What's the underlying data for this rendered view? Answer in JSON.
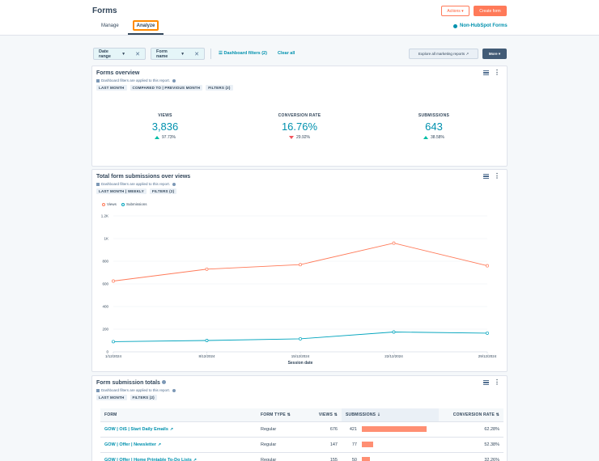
{
  "header": {
    "title": "Forms",
    "actions_label": "Actions ▾",
    "create_label": "Create form",
    "tabs": [
      {
        "label": "Manage"
      },
      {
        "label": "Analyze"
      }
    ],
    "non_hubspot_label": "Non-HubSpot Forms"
  },
  "filters": {
    "date_range": "Date range",
    "form_name": "Form name",
    "dashboard_filters": "Dashboard filters (2)",
    "clear_all": "Clear all",
    "explore": "Explore all marketing reports",
    "more": "More ▾"
  },
  "overview": {
    "title": "Forms overview",
    "applied_note": "Dashboard filters are applied to this report.",
    "tags": [
      "LAST MONTH",
      "COMPARED TO | PREVIOUS MONTH",
      "FILTERS (2)"
    ],
    "kpis": [
      {
        "label": "VIEWS",
        "value": "3,836",
        "change": "97.73%",
        "direction": "up"
      },
      {
        "label": "CONVERSION RATE",
        "value": "16.76%",
        "change": "29.92%",
        "direction": "down"
      },
      {
        "label": "SUBMISSIONS",
        "value": "643",
        "change": "38.58%",
        "direction": "up"
      }
    ]
  },
  "trend": {
    "title": "Total form submissions over views",
    "applied_note": "Dashboard filters are applied to this report.",
    "tags": [
      "LAST MONTH | WEEKLY",
      "FILTERS (2)"
    ],
    "chart_data": {
      "type": "line",
      "x": [
        "1/12/2024",
        "8/12/2024",
        "15/12/2024",
        "22/12/2024",
        "29/12/2024"
      ],
      "xlabel": "Session date",
      "ylim": [
        0,
        1200
      ],
      "yticks": [
        "0",
        "200",
        "400",
        "600",
        "800",
        "1K",
        "1.2K"
      ],
      "legend": "top-left",
      "series": [
        {
          "name": "Views",
          "color": "#ff7a59",
          "values": [
            625,
            730,
            770,
            960,
            760
          ]
        },
        {
          "name": "Submissions",
          "color": "#00a4bd",
          "values": [
            90,
            100,
            115,
            175,
            165
          ]
        }
      ]
    }
  },
  "totals": {
    "title": "Form submission totals",
    "applied_note": "Dashboard filters are applied to this report.",
    "tags": [
      "LAST MONTH",
      "FILTERS (2)"
    ],
    "columns": [
      "FORM",
      "FORM TYPE",
      "VIEWS",
      "SUBMISSIONS",
      "CONVERSION RATE"
    ],
    "rows": [
      {
        "form": "GOW | OiS | Start Daily Emails",
        "type": "Regular",
        "views": "676",
        "submissions": "421",
        "submissions_share": 1.0,
        "rate": "62.28%"
      },
      {
        "form": "GOW | Offer | Newsletter",
        "type": "Regular",
        "views": "147",
        "submissions": "77",
        "submissions_share": 0.18,
        "rate": "52.38%"
      },
      {
        "form": "GOW | Offer | Home Printable To-Do Lists",
        "type": "Regular",
        "views": "155",
        "submissions": "50",
        "submissions_share": 0.12,
        "rate": "32.26%"
      }
    ]
  }
}
